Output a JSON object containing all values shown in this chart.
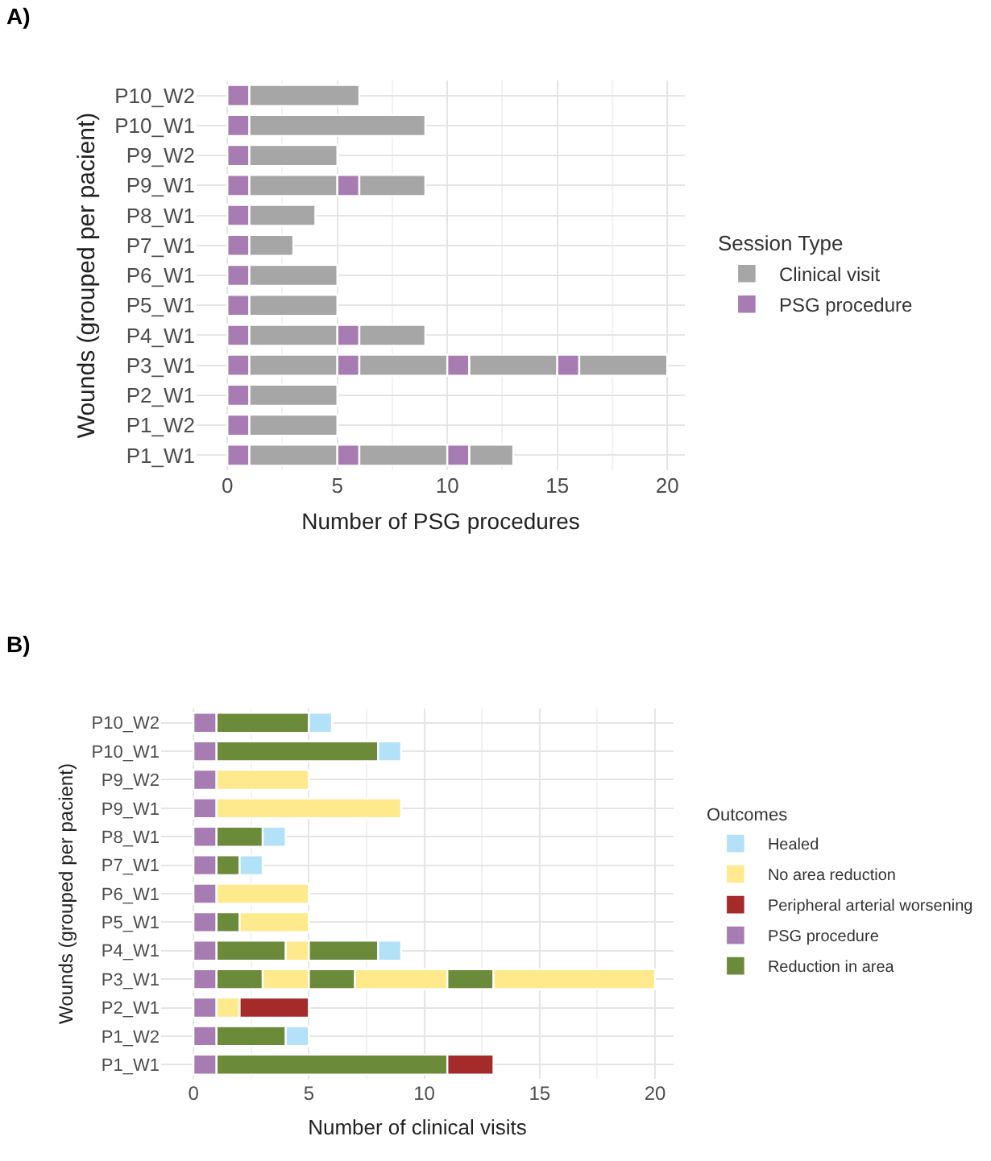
{
  "chart_data": [
    {
      "type": "bar",
      "title": "A)",
      "orientation": "horizontal",
      "stacked": true,
      "xlabel": "Number of PSG procedures",
      "ylabel": "Wounds (grouped per pacient)",
      "legend_title": "Session Type",
      "legend": "right",
      "grid": true,
      "categories": [
        "P10_W2",
        "P10_W1",
        "P9_W2",
        "P9_W1",
        "P8_W1",
        "P7_W1",
        "P6_W1",
        "P5_W1",
        "P4_W1",
        "P3_W1",
        "P2_W1",
        "P1_W2",
        "P1_W1"
      ],
      "xlim": [
        -1.4,
        20.8
      ],
      "xticks": [
        0,
        5,
        10,
        15,
        20
      ],
      "series": [
        {
          "name": "PSG procedure",
          "color": "#a67cb3",
          "values": [
            1,
            1,
            1,
            1,
            1,
            1,
            1,
            1,
            1,
            1,
            1,
            1,
            1
          ]
        },
        {
          "name": "Clinical visit",
          "color": "#a6a6a6",
          "values": [
            5,
            8,
            4,
            4,
            3,
            2,
            4,
            4,
            4,
            4,
            4,
            4,
            4
          ]
        },
        {
          "color": "#a67cb3",
          "values": [
            null,
            null,
            null,
            1,
            null,
            null,
            null,
            null,
            1,
            1,
            null,
            null,
            1
          ]
        },
        {
          "color": "#a6a6a6",
          "values": [
            null,
            null,
            null,
            3,
            null,
            null,
            null,
            null,
            3,
            4,
            null,
            null,
            4
          ]
        },
        {
          "color": "#a67cb3",
          "values": [
            null,
            null,
            null,
            null,
            null,
            null,
            null,
            null,
            null,
            1,
            null,
            null,
            1
          ]
        },
        {
          "color": "#a6a6a6",
          "values": [
            null,
            null,
            null,
            null,
            null,
            null,
            null,
            null,
            null,
            4,
            null,
            null,
            2
          ]
        },
        {
          "color": "#a67cb3",
          "values": [
            null,
            null,
            null,
            null,
            null,
            null,
            null,
            null,
            null,
            1,
            null,
            null,
            null
          ]
        },
        {
          "color": "#a6a6a6",
          "values": [
            null,
            null,
            null,
            null,
            null,
            null,
            null,
            null,
            null,
            4,
            null,
            null,
            null
          ]
        }
      ]
    },
    {
      "type": "bar",
      "title": "B)",
      "orientation": "horizontal",
      "stacked": true,
      "xlabel": "Number of clinical visits",
      "ylabel": "Wounds (grouped per pacient)",
      "legend_title": "Outcomes",
      "legend": "right",
      "grid": true,
      "categories": [
        "P10_W2",
        "P10_W1",
        "P9_W2",
        "P9_W1",
        "P8_W1",
        "P7_W1",
        "P6_W1",
        "P5_W1",
        "P4_W1",
        "P3_W1",
        "P2_W1",
        "P1_W2",
        "P1_W1"
      ],
      "xlim": [
        -1.4,
        20.8
      ],
      "xticks": [
        0,
        5,
        10,
        15,
        20
      ],
      "series": [
        {
          "name": "PSG procedure",
          "color": "#a67cb3",
          "values": [
            1,
            1,
            1,
            1,
            1,
            1,
            1,
            1,
            1,
            1,
            1,
            1,
            1
          ]
        },
        {
          "name": "Reduction in area",
          "color": "#6b8a3a",
          "values": [
            4,
            7,
            null,
            null,
            2,
            1,
            null,
            1,
            3,
            2,
            null,
            3,
            10
          ]
        },
        {
          "name": "No area reduction",
          "color": "#fee98c",
          "values": [
            null,
            null,
            4,
            8,
            null,
            null,
            4,
            3,
            1,
            2,
            1,
            null,
            null
          ]
        },
        {
          "color": "#6b8a3a",
          "values": [
            null,
            null,
            null,
            null,
            null,
            null,
            null,
            null,
            3,
            2,
            null,
            null,
            null
          ]
        },
        {
          "color": "#fee98c",
          "values": [
            null,
            null,
            null,
            null,
            null,
            null,
            null,
            null,
            null,
            4,
            null,
            null,
            null
          ]
        },
        {
          "color": "#6b8a3a",
          "values": [
            null,
            null,
            null,
            null,
            null,
            null,
            null,
            null,
            null,
            2,
            null,
            null,
            null
          ]
        },
        {
          "color": "#fee98c",
          "values": [
            null,
            null,
            null,
            null,
            null,
            null,
            null,
            null,
            null,
            7,
            null,
            null,
            null
          ]
        },
        {
          "name": "Peripheral arterial worsening",
          "color": "#a52a2a",
          "values": [
            null,
            null,
            null,
            null,
            null,
            null,
            null,
            null,
            null,
            null,
            3,
            null,
            2
          ]
        },
        {
          "name": "Healed",
          "color": "#b3e2f8",
          "values": [
            1,
            1,
            null,
            null,
            1,
            1,
            null,
            null,
            1,
            null,
            null,
            1,
            null
          ]
        }
      ]
    }
  ]
}
